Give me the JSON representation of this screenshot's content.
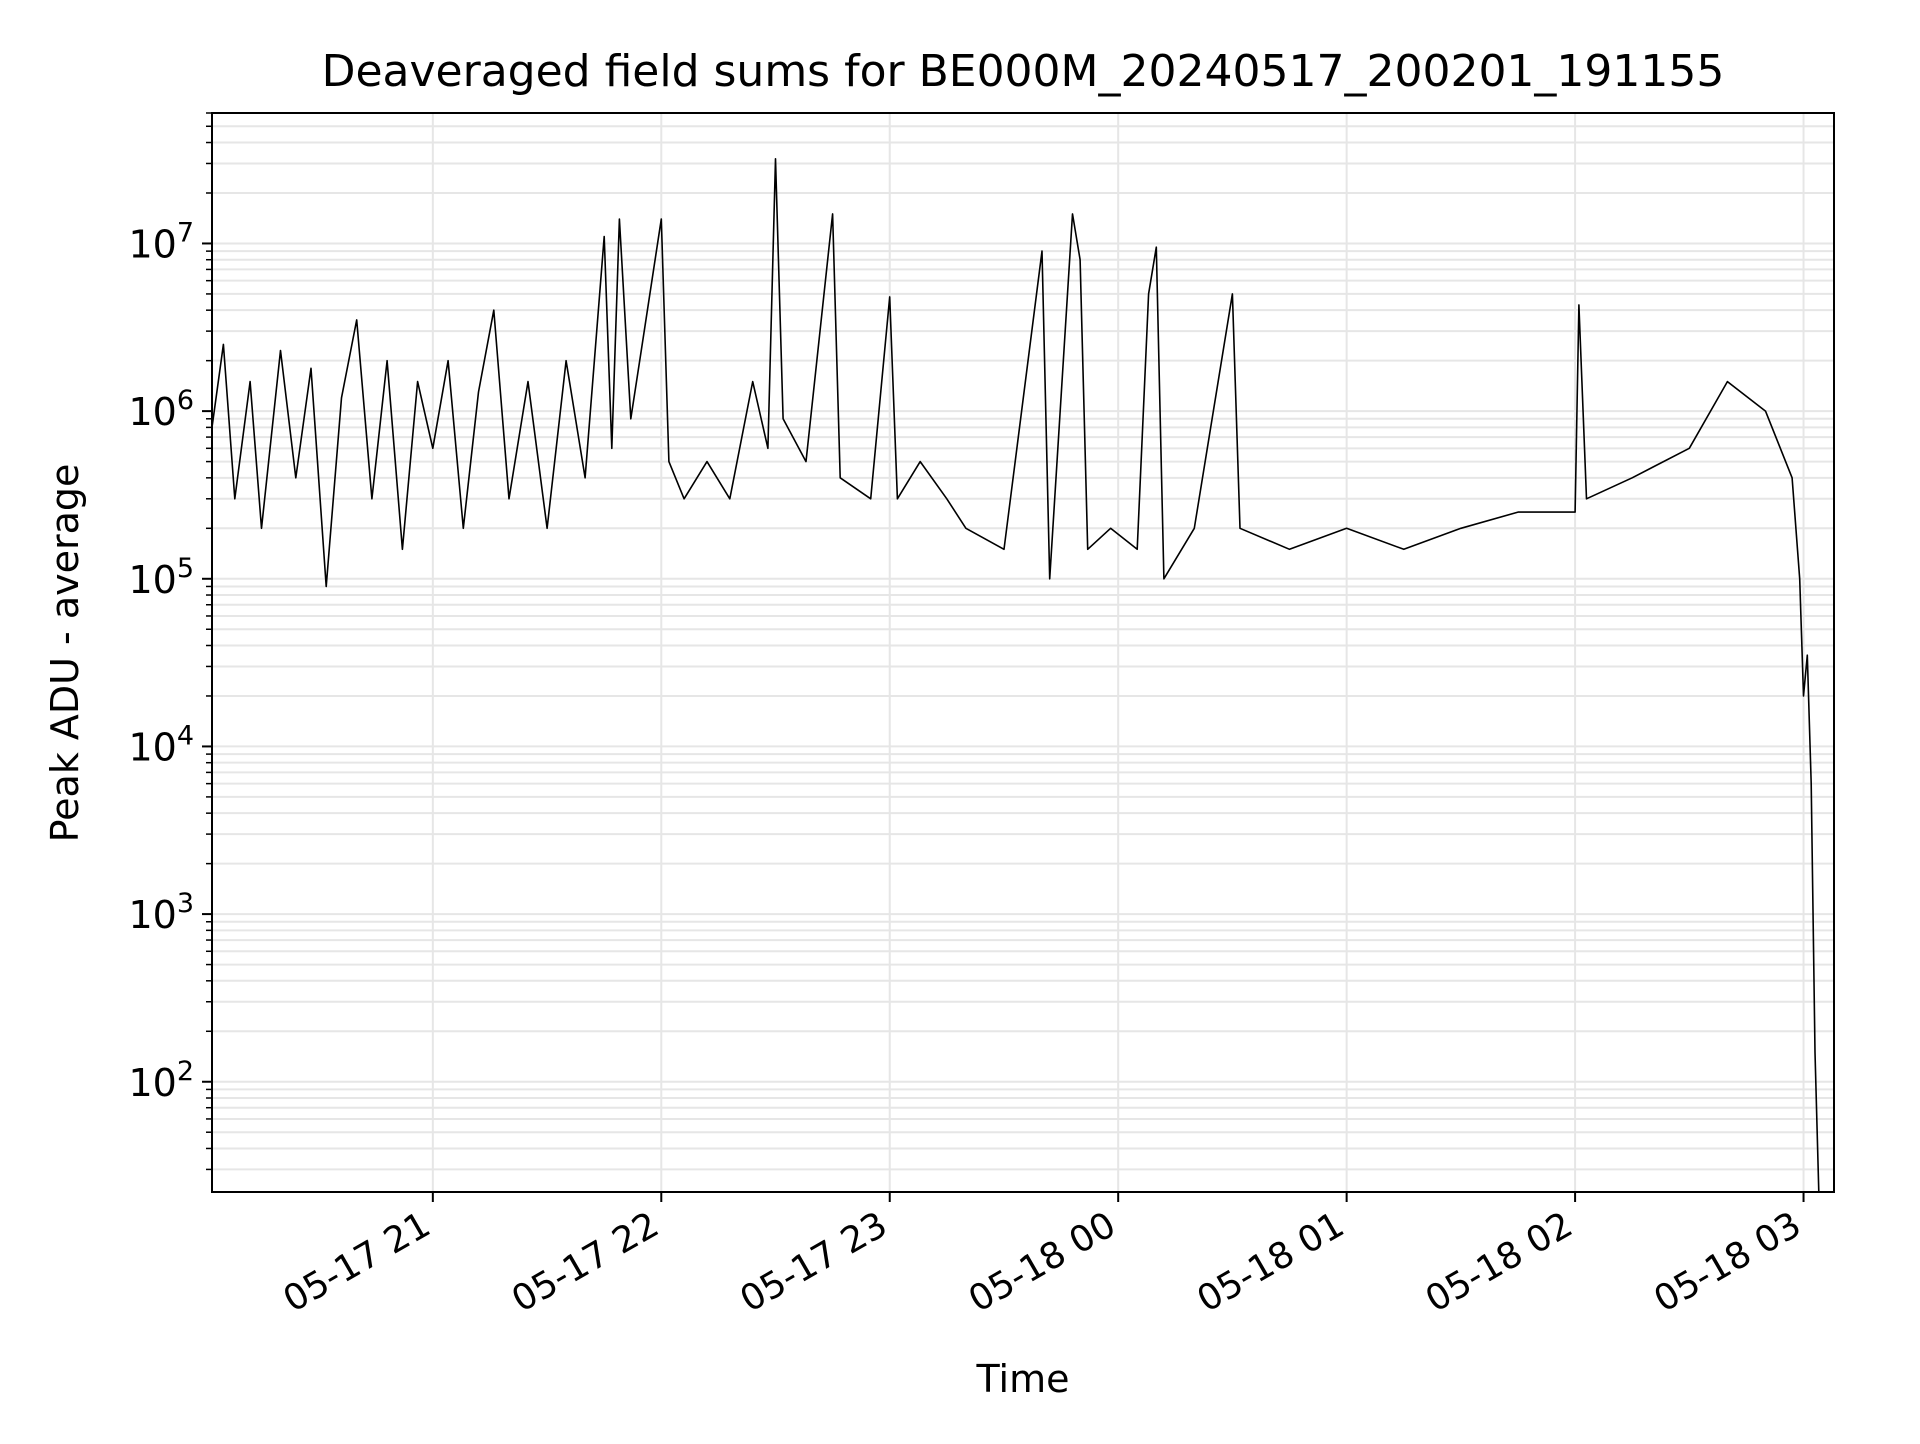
{
  "chart_data": {
    "type": "line",
    "title": "Deaveraged field sums for BE000M_20240517_200201_191155",
    "xlabel": "Time",
    "ylabel": "Peak ADU - average",
    "yscale": "log",
    "ylim": [
      22,
      60000000
    ],
    "xlim": [
      "2024-05-17 20:02",
      "2024-05-18 03:08"
    ],
    "grid": true,
    "line_color": "#000000",
    "grid_color": "#e6e6e6",
    "x_ticks": [
      {
        "t": "2024-05-17 21:00",
        "label": "05-17 21"
      },
      {
        "t": "2024-05-17 22:00",
        "label": "05-17 22"
      },
      {
        "t": "2024-05-17 23:00",
        "label": "05-17 23"
      },
      {
        "t": "2024-05-18 00:00",
        "label": "05-18 00"
      },
      {
        "t": "2024-05-18 01:00",
        "label": "05-18 01"
      },
      {
        "t": "2024-05-18 02:00",
        "label": "05-18 02"
      },
      {
        "t": "2024-05-18 03:00",
        "label": "05-18 03"
      }
    ],
    "y_ticks": [
      {
        "value": 100,
        "base": "10",
        "exp": "2"
      },
      {
        "value": 1000,
        "base": "10",
        "exp": "3"
      },
      {
        "value": 10000,
        "base": "10",
        "exp": "4"
      },
      {
        "value": 100000,
        "base": "10",
        "exp": "5"
      },
      {
        "value": 1000000,
        "base": "10",
        "exp": "6"
      },
      {
        "value": 10000000,
        "base": "10",
        "exp": "7"
      }
    ],
    "series": [
      {
        "points": [
          [
            "2024-05-17 20:02",
            800000
          ],
          [
            "2024-05-17 20:05",
            2500000
          ],
          [
            "2024-05-17 20:08",
            300000
          ],
          [
            "2024-05-17 20:12",
            1500000
          ],
          [
            "2024-05-17 20:15",
            200000
          ],
          [
            "2024-05-17 20:20",
            2300000
          ],
          [
            "2024-05-17 20:24",
            400000
          ],
          [
            "2024-05-17 20:28",
            1800000
          ],
          [
            "2024-05-17 20:32",
            90000
          ],
          [
            "2024-05-17 20:36",
            1200000
          ],
          [
            "2024-05-17 20:40",
            3500000
          ],
          [
            "2024-05-17 20:44",
            300000
          ],
          [
            "2024-05-17 20:48",
            2000000
          ],
          [
            "2024-05-17 20:52",
            150000
          ],
          [
            "2024-05-17 20:56",
            1500000
          ],
          [
            "2024-05-17 21:00",
            600000
          ],
          [
            "2024-05-17 21:04",
            2000000
          ],
          [
            "2024-05-17 21:08",
            200000
          ],
          [
            "2024-05-17 21:12",
            1300000
          ],
          [
            "2024-05-17 21:16",
            4000000
          ],
          [
            "2024-05-17 21:20",
            300000
          ],
          [
            "2024-05-17 21:25",
            1500000
          ],
          [
            "2024-05-17 21:30",
            200000
          ],
          [
            "2024-05-17 21:35",
            2000000
          ],
          [
            "2024-05-17 21:40",
            400000
          ],
          [
            "2024-05-17 21:45",
            11000000
          ],
          [
            "2024-05-17 21:47",
            600000
          ],
          [
            "2024-05-17 21:49",
            14000000
          ],
          [
            "2024-05-17 21:52",
            900000
          ],
          [
            "2024-05-17 21:55",
            2500000
          ],
          [
            "2024-05-17 22:00",
            14000000
          ],
          [
            "2024-05-17 22:02",
            500000
          ],
          [
            "2024-05-17 22:06",
            300000
          ],
          [
            "2024-05-17 22:12",
            500000
          ],
          [
            "2024-05-17 22:18",
            300000
          ],
          [
            "2024-05-17 22:24",
            1500000
          ],
          [
            "2024-05-17 22:28",
            600000
          ],
          [
            "2024-05-17 22:30",
            32000000
          ],
          [
            "2024-05-17 22:32",
            900000
          ],
          [
            "2024-05-17 22:38",
            500000
          ],
          [
            "2024-05-17 22:45",
            15000000
          ],
          [
            "2024-05-17 22:47",
            400000
          ],
          [
            "2024-05-17 22:55",
            300000
          ],
          [
            "2024-05-17 23:00",
            4800000
          ],
          [
            "2024-05-17 23:02",
            300000
          ],
          [
            "2024-05-17 23:08",
            500000
          ],
          [
            "2024-05-17 23:15",
            300000
          ],
          [
            "2024-05-17 23:20",
            200000
          ],
          [
            "2024-05-17 23:30",
            150000
          ],
          [
            "2024-05-17 23:40",
            9000000
          ],
          [
            "2024-05-17 23:42",
            100000
          ],
          [
            "2024-05-17 23:48",
            15000000
          ],
          [
            "2024-05-17 23:50",
            8000000
          ],
          [
            "2024-05-17 23:52",
            150000
          ],
          [
            "2024-05-17 23:58",
            200000
          ],
          [
            "2024-05-18 00:05",
            150000
          ],
          [
            "2024-05-18 00:08",
            5000000
          ],
          [
            "2024-05-18 00:10",
            9500000
          ],
          [
            "2024-05-18 00:12",
            100000
          ],
          [
            "2024-05-18 00:20",
            200000
          ],
          [
            "2024-05-18 00:30",
            5000000
          ],
          [
            "2024-05-18 00:32",
            200000
          ],
          [
            "2024-05-18 00:45",
            150000
          ],
          [
            "2024-05-18 01:00",
            200000
          ],
          [
            "2024-05-18 01:15",
            150000
          ],
          [
            "2024-05-18 01:30",
            200000
          ],
          [
            "2024-05-18 01:45",
            250000
          ],
          [
            "2024-05-18 02:00",
            250000
          ],
          [
            "2024-05-18 02:01",
            4300000
          ],
          [
            "2024-05-18 02:03",
            300000
          ],
          [
            "2024-05-18 02:15",
            400000
          ],
          [
            "2024-05-18 02:30",
            600000
          ],
          [
            "2024-05-18 02:40",
            1500000
          ],
          [
            "2024-05-18 02:50",
            1000000
          ],
          [
            "2024-05-18 02:57",
            400000
          ],
          [
            "2024-05-18 02:59",
            100000
          ],
          [
            "2024-05-18 03:00",
            20000
          ],
          [
            "2024-05-18 03:01",
            35000
          ],
          [
            "2024-05-18 03:02",
            6000
          ],
          [
            "2024-05-18 03:03",
            150
          ],
          [
            "2024-05-18 03:04",
            22
          ]
        ]
      }
    ]
  }
}
